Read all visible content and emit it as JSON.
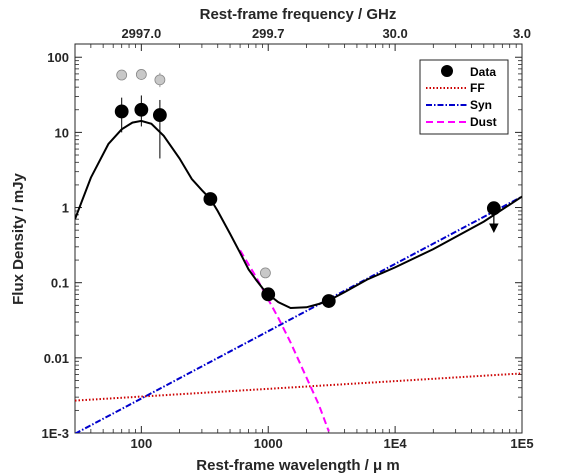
{
  "chart_data": {
    "type": "scatter",
    "xlabel": "Rest-frame wavelength  / μ m",
    "ylabel": "Flux Density  / mJy",
    "top_xlabel": "Rest-frame frequency  / GHz",
    "x_scale": "log",
    "y_scale": "log",
    "xlim": [
      30,
      100000
    ],
    "ylim": [
      0.001,
      150
    ],
    "grid": false,
    "legend_position": "top-right",
    "x_ticks": [
      {
        "value": 100,
        "label": "100"
      },
      {
        "value": 1000,
        "label": "1000"
      },
      {
        "value": 10000,
        "label": "1E4"
      },
      {
        "value": 100000,
        "label": "1E5"
      }
    ],
    "y_ticks": [
      {
        "value": 0.001,
        "label": "1E-3"
      },
      {
        "value": 0.01,
        "label": "0.01"
      },
      {
        "value": 0.1,
        "label": "0.1"
      },
      {
        "value": 1,
        "label": "1"
      },
      {
        "value": 10,
        "label": "10"
      },
      {
        "value": 100,
        "label": "100"
      }
    ],
    "top_ticks": [
      {
        "value": 100,
        "label": "2997.0"
      },
      {
        "value": 1000,
        "label": "299.7"
      },
      {
        "value": 10000,
        "label": "30.0"
      },
      {
        "value": 100000,
        "label": "3.0"
      }
    ],
    "series": [
      {
        "name": "Data",
        "style": "points",
        "color": "#000000",
        "points": [
          {
            "x": 70,
            "y": 19,
            "err_low": 10,
            "err_high": 29
          },
          {
            "x": 100,
            "y": 20,
            "err_low": 12,
            "err_high": 31
          },
          {
            "x": 140,
            "y": 17,
            "err_low": 4.5,
            "err_high": 27
          },
          {
            "x": 350,
            "y": 1.3
          },
          {
            "x": 1000,
            "y": 0.07
          },
          {
            "x": 3000,
            "y": 0.057
          },
          {
            "x": 60000,
            "y": 0.98,
            "upper_limit": true
          }
        ]
      },
      {
        "style": "gray-points",
        "color": "#c8c8c8",
        "points": [
          {
            "x": 70,
            "y": 58
          },
          {
            "x": 100,
            "y": 59
          },
          {
            "x": 140,
            "y": 50,
            "err_low": 40,
            "err_high": 62
          },
          {
            "x": 950,
            "y": 0.135
          }
        ]
      },
      {
        "name": "FF",
        "style": "dotted",
        "color": "#cc0000",
        "x": [
          30,
          100000
        ],
        "y": [
          0.0027,
          0.0062
        ]
      },
      {
        "name": "Syn",
        "style": "dashdot",
        "color": "#0000cc",
        "x": [
          30,
          100000
        ],
        "y": [
          0.00098,
          1.4
        ]
      },
      {
        "name": "Dust",
        "style": "dashed",
        "color": "#ff00ff",
        "x": [
          600,
          800,
          1000,
          1200,
          1500,
          2000,
          2500,
          3000
        ],
        "y": [
          0.27,
          0.12,
          0.06,
          0.034,
          0.016,
          0.0055,
          0.0024,
          0.00105
        ]
      },
      {
        "style": "solid",
        "color": "#000000",
        "x": [
          30,
          40,
          55,
          70,
          85,
          100,
          120,
          150,
          200,
          250,
          300,
          350,
          400,
          500,
          600,
          700,
          800,
          900,
          1000,
          1200,
          1500,
          2000,
          2500,
          3000,
          4000,
          6000,
          10000,
          20000,
          50000,
          100000
        ],
        "y": [
          0.7,
          2.5,
          7.0,
          11.0,
          13.5,
          14.2,
          13.0,
          9.0,
          4.5,
          2.4,
          1.7,
          1.3,
          0.9,
          0.45,
          0.25,
          0.15,
          0.11,
          0.085,
          0.07,
          0.055,
          0.046,
          0.047,
          0.052,
          0.058,
          0.075,
          0.11,
          0.16,
          0.28,
          0.65,
          1.4
        ]
      }
    ]
  }
}
